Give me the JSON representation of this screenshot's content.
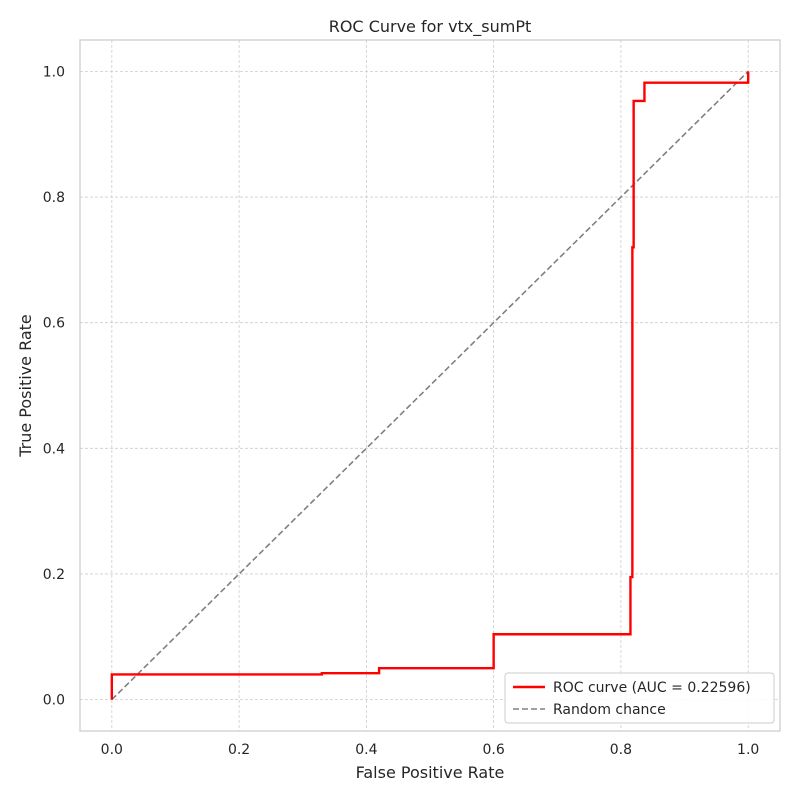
{
  "chart_data": {
    "type": "line",
    "title": "ROC Curve for vtx_sumPt",
    "xlabel": "False Positive Rate",
    "ylabel": "True Positive Rate",
    "xlim": [
      -0.05,
      1.05
    ],
    "ylim": [
      -0.05,
      1.05
    ],
    "xticks": [
      "0.0",
      "0.2",
      "0.4",
      "0.6",
      "0.8",
      "1.0"
    ],
    "yticks": [
      "0.0",
      "0.2",
      "0.4",
      "0.6",
      "0.8",
      "1.0"
    ],
    "grid": true,
    "legend_position": "bottom-right",
    "series": [
      {
        "name": "ROC curve (AUC = 0.22596)",
        "color": "#ff0000",
        "style": "solid",
        "x": [
          0.0,
          0.0,
          0.33,
          0.33,
          0.42,
          0.42,
          0.6,
          0.6,
          0.815,
          0.815,
          0.818,
          0.818,
          0.82,
          0.82,
          0.837,
          0.837,
          1.0,
          1.0
        ],
        "y": [
          0.0,
          0.04,
          0.04,
          0.042,
          0.042,
          0.05,
          0.05,
          0.104,
          0.104,
          0.195,
          0.195,
          0.72,
          0.72,
          0.953,
          0.953,
          0.982,
          0.982,
          1.0
        ]
      },
      {
        "name": "Random chance",
        "color": "#808080",
        "style": "dashed",
        "x": [
          0.0,
          1.0
        ],
        "y": [
          0.0,
          1.0
        ]
      }
    ]
  }
}
